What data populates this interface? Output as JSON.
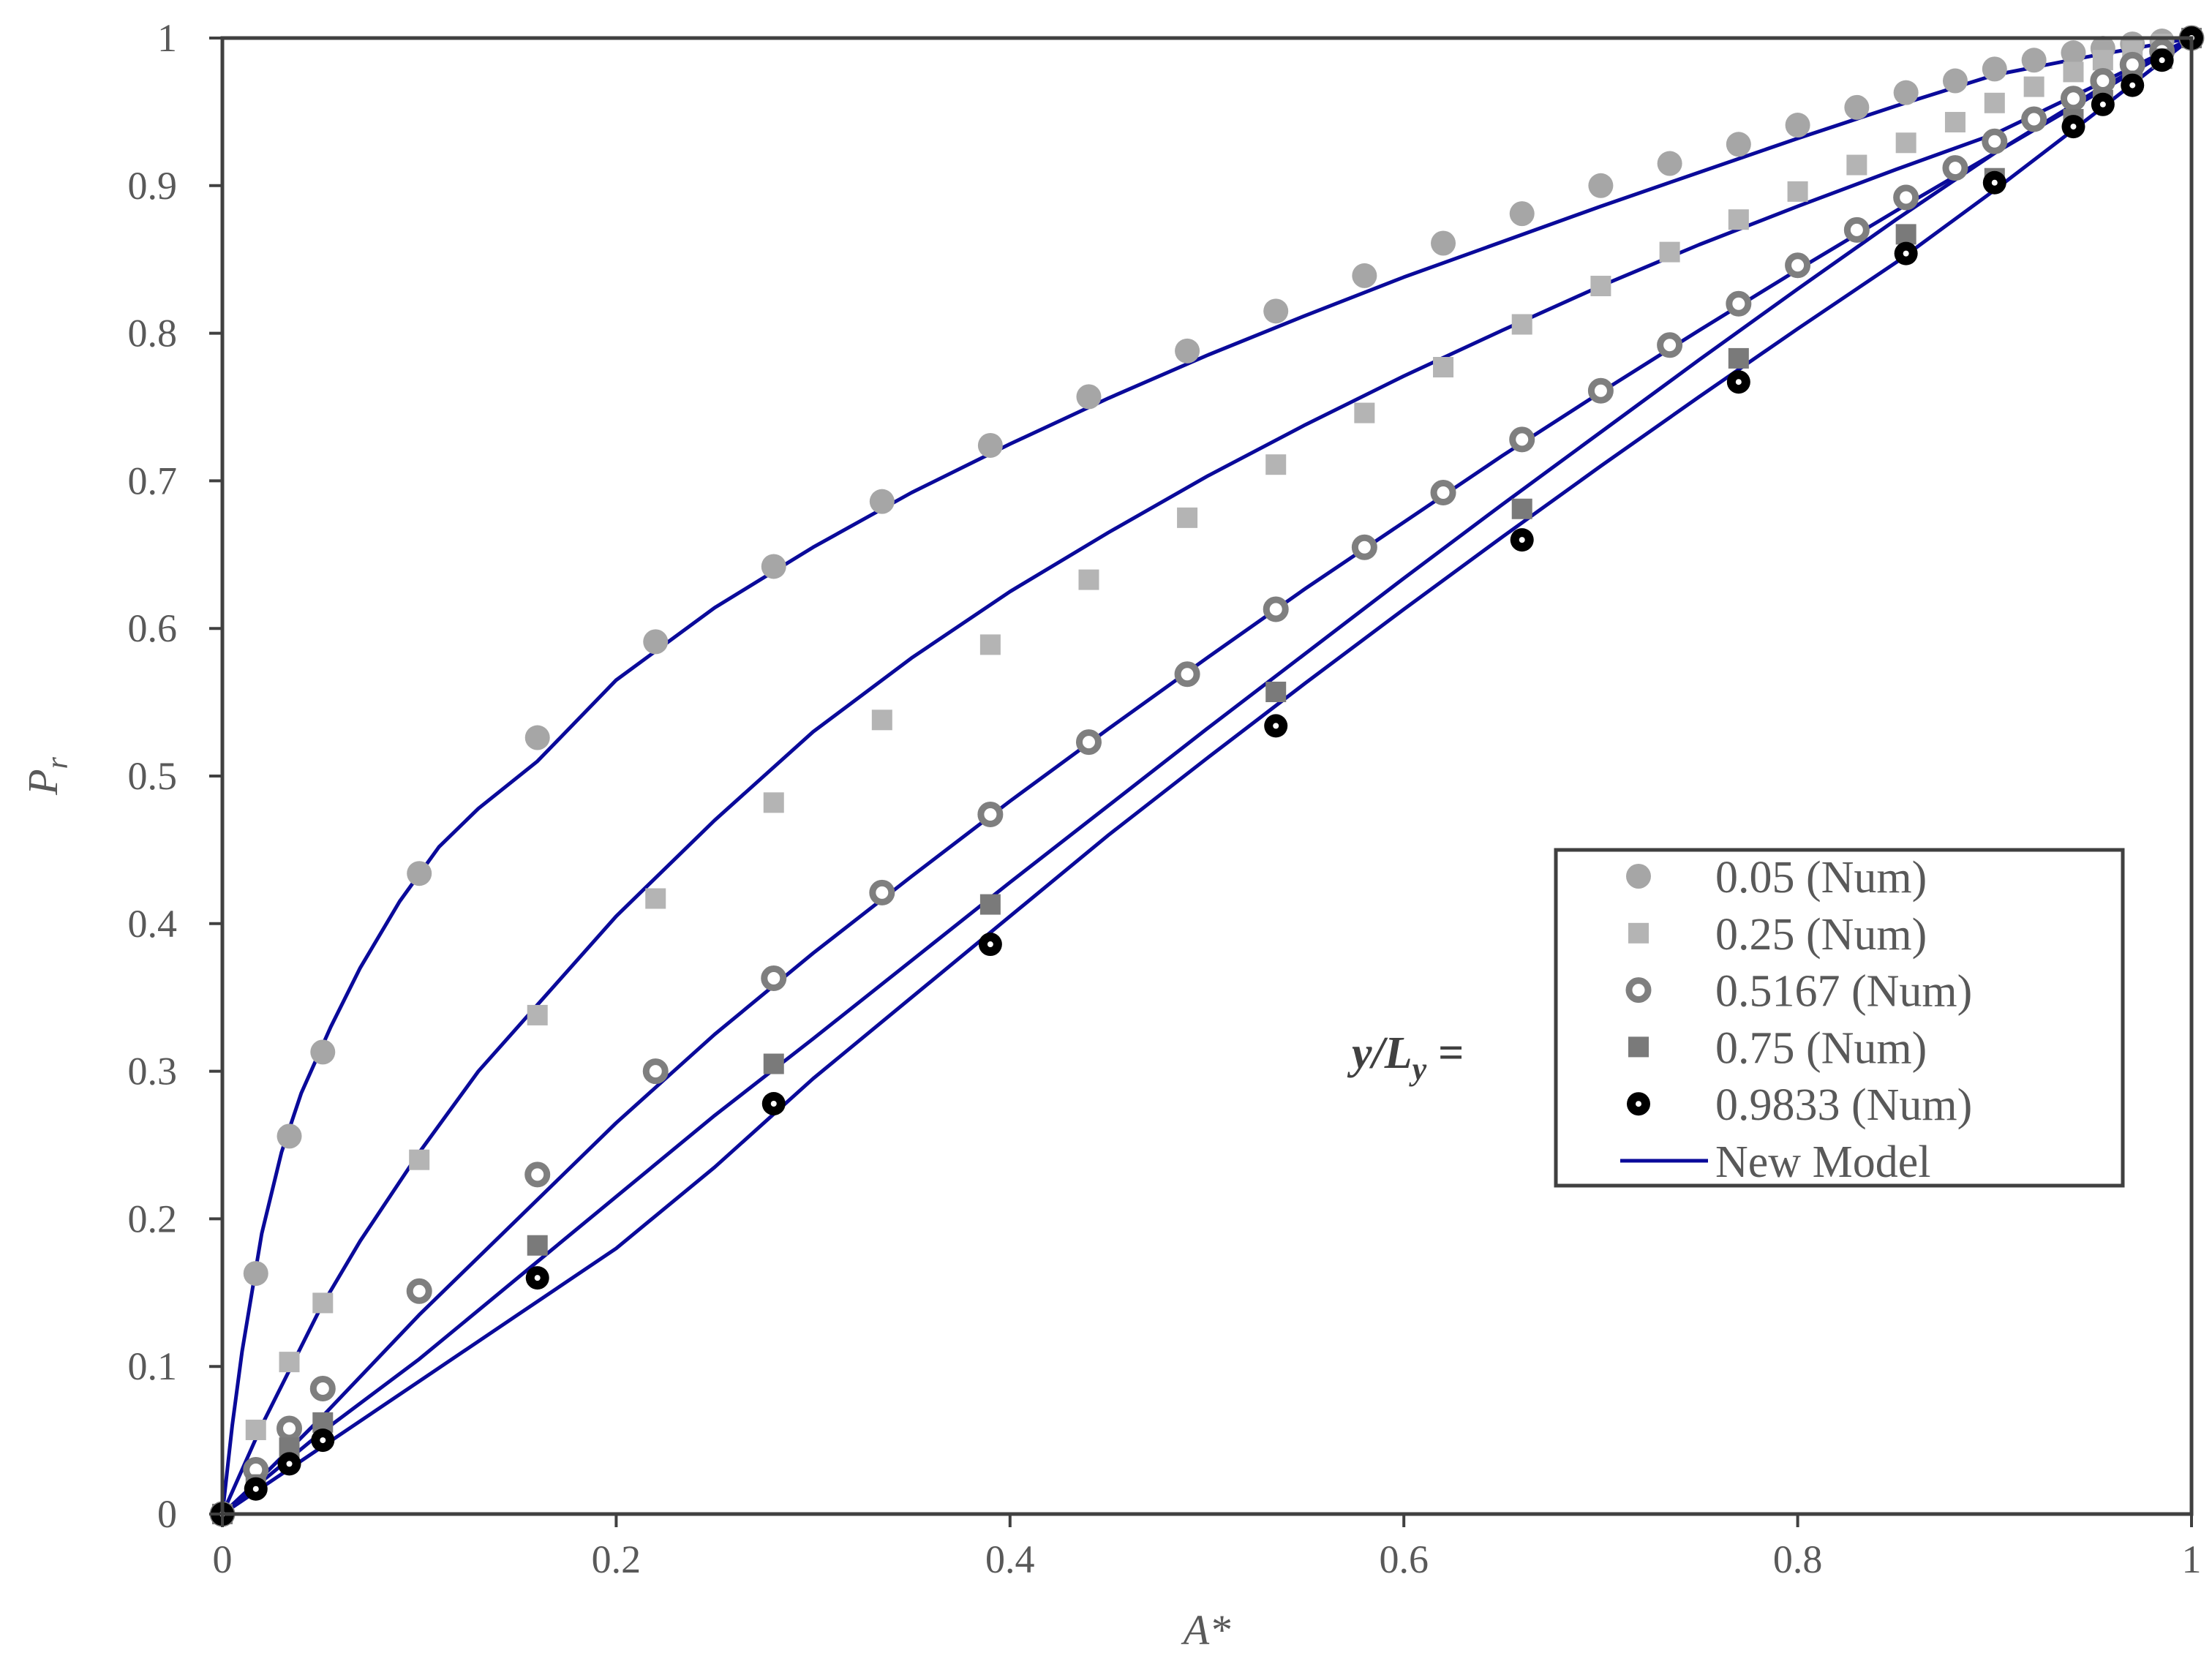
{
  "chart_data": {
    "type": "scatter",
    "xlabel": "A*",
    "ylabel_main": "P",
    "ylabel_sub": "r",
    "xlim": [
      0,
      1
    ],
    "ylim": [
      0,
      1
    ],
    "xticks": [
      "0",
      "0.2",
      "0.4",
      "0.6",
      "0.8",
      "1"
    ],
    "yticks": [
      "0",
      "0.1",
      "0.2",
      "0.3",
      "0.4",
      "0.5",
      "0.6",
      "0.7",
      "0.8",
      "0.9",
      "1"
    ],
    "grid": false,
    "legend": {
      "label_main": "y/L",
      "label_sub": "y",
      "label_eq": " =",
      "placement": "right"
    },
    "series": [
      {
        "name": "0.05 (Num)",
        "marker": "circle",
        "color": "#a6a6a6",
        "points": [
          [
            0,
            0
          ],
          [
            0.017,
            0.163
          ],
          [
            0.034,
            0.256
          ],
          [
            0.051,
            0.313
          ],
          [
            0.1,
            0.434
          ],
          [
            0.16,
            0.526
          ],
          [
            0.22,
            0.591
          ],
          [
            0.28,
            0.642
          ],
          [
            0.335,
            0.686
          ],
          [
            0.39,
            0.724
          ],
          [
            0.44,
            0.757
          ],
          [
            0.49,
            0.788
          ],
          [
            0.535,
            0.815
          ],
          [
            0.58,
            0.839
          ],
          [
            0.62,
            0.861
          ],
          [
            0.66,
            0.881
          ],
          [
            0.7,
            0.9
          ],
          [
            0.735,
            0.915
          ],
          [
            0.77,
            0.928
          ],
          [
            0.8,
            0.941
          ],
          [
            0.83,
            0.953
          ],
          [
            0.855,
            0.963
          ],
          [
            0.88,
            0.971
          ],
          [
            0.9,
            0.979
          ],
          [
            0.92,
            0.985
          ],
          [
            0.94,
            0.99
          ],
          [
            0.955,
            0.993
          ],
          [
            0.97,
            0.996
          ],
          [
            0.985,
            0.998
          ],
          [
            1.0,
            1.0
          ]
        ]
      },
      {
        "name": "0.25 (Num)",
        "marker": "square",
        "color": "#b4b4b4",
        "points": [
          [
            0,
            0
          ],
          [
            0.017,
            0.057
          ],
          [
            0.034,
            0.103
          ],
          [
            0.051,
            0.143
          ],
          [
            0.1,
            0.24
          ],
          [
            0.16,
            0.338
          ],
          [
            0.22,
            0.417
          ],
          [
            0.28,
            0.482
          ],
          [
            0.335,
            0.538
          ],
          [
            0.39,
            0.589
          ],
          [
            0.44,
            0.633
          ],
          [
            0.49,
            0.675
          ],
          [
            0.535,
            0.711
          ],
          [
            0.58,
            0.746
          ],
          [
            0.62,
            0.777
          ],
          [
            0.66,
            0.806
          ],
          [
            0.7,
            0.832
          ],
          [
            0.735,
            0.855
          ],
          [
            0.77,
            0.877
          ],
          [
            0.8,
            0.896
          ],
          [
            0.83,
            0.914
          ],
          [
            0.855,
            0.929
          ],
          [
            0.88,
            0.943
          ],
          [
            0.9,
            0.956
          ],
          [
            0.92,
            0.967
          ],
          [
            0.94,
            0.977
          ],
          [
            0.955,
            0.985
          ],
          [
            0.97,
            0.991
          ],
          [
            0.985,
            0.996
          ],
          [
            1.0,
            1.0
          ]
        ]
      },
      {
        "name": "0.5167 (Num)",
        "marker": "ring",
        "color": "#7f7f7f",
        "points": [
          [
            0,
            0
          ],
          [
            0.017,
            0.03
          ],
          [
            0.034,
            0.058
          ],
          [
            0.051,
            0.085
          ],
          [
            0.1,
            0.151
          ],
          [
            0.16,
            0.23
          ],
          [
            0.22,
            0.3
          ],
          [
            0.28,
            0.363
          ],
          [
            0.335,
            0.421
          ],
          [
            0.39,
            0.474
          ],
          [
            0.44,
            0.523
          ],
          [
            0.49,
            0.569
          ],
          [
            0.535,
            0.613
          ],
          [
            0.58,
            0.655
          ],
          [
            0.62,
            0.692
          ],
          [
            0.66,
            0.728
          ],
          [
            0.7,
            0.761
          ],
          [
            0.735,
            0.792
          ],
          [
            0.77,
            0.82
          ],
          [
            0.8,
            0.846
          ],
          [
            0.83,
            0.87
          ],
          [
            0.855,
            0.892
          ],
          [
            0.88,
            0.912
          ],
          [
            0.9,
            0.93
          ],
          [
            0.92,
            0.945
          ],
          [
            0.94,
            0.959
          ],
          [
            0.955,
            0.971
          ],
          [
            0.97,
            0.982
          ],
          [
            0.985,
            0.991
          ],
          [
            1.0,
            1.0
          ]
        ]
      },
      {
        "name": "0.75 (Num)",
        "marker": "square",
        "color": "#7a7a7a",
        "points": [
          [
            0,
            0
          ],
          [
            0.017,
            0.02
          ],
          [
            0.034,
            0.045
          ],
          [
            0.051,
            0.062
          ],
          [
            0.16,
            0.182
          ],
          [
            0.28,
            0.305
          ],
          [
            0.39,
            0.413
          ],
          [
            0.535,
            0.557
          ],
          [
            0.66,
            0.681
          ],
          [
            0.77,
            0.783
          ],
          [
            0.855,
            0.867
          ],
          [
            0.9,
            0.905
          ],
          [
            0.94,
            0.945
          ],
          [
            0.955,
            0.958
          ],
          [
            0.97,
            0.971
          ],
          [
            0.985,
            0.986
          ],
          [
            1.0,
            1.0
          ]
        ]
      },
      {
        "name": "0.9833 (Num)",
        "marker": "black-dot",
        "color": "#000000",
        "points": [
          [
            0,
            0
          ],
          [
            0.017,
            0.017
          ],
          [
            0.034,
            0.034
          ],
          [
            0.051,
            0.05
          ],
          [
            0.16,
            0.16
          ],
          [
            0.28,
            0.278
          ],
          [
            0.39,
            0.386
          ],
          [
            0.535,
            0.534
          ],
          [
            0.66,
            0.66
          ],
          [
            0.77,
            0.767
          ],
          [
            0.855,
            0.854
          ],
          [
            0.9,
            0.902
          ],
          [
            0.94,
            0.94
          ],
          [
            0.955,
            0.955
          ],
          [
            0.97,
            0.968
          ],
          [
            0.985,
            0.985
          ],
          [
            1.0,
            1.0
          ]
        ]
      },
      {
        "name": "New Model",
        "marker": "line",
        "color": "#0a0a9a",
        "curves": [
          [
            [
              0,
              0
            ],
            [
              0.005,
              0.06
            ],
            [
              0.01,
              0.11
            ],
            [
              0.02,
              0.19
            ],
            [
              0.03,
              0.245
            ],
            [
              0.04,
              0.285
            ],
            [
              0.055,
              0.33
            ],
            [
              0.07,
              0.37
            ],
            [
              0.09,
              0.415
            ],
            [
              0.11,
              0.452
            ],
            [
              0.13,
              0.478
            ],
            [
              0.16,
              0.51
            ],
            [
              0.2,
              0.565
            ],
            [
              0.25,
              0.614
            ],
            [
              0.3,
              0.655
            ],
            [
              0.35,
              0.692
            ],
            [
              0.4,
              0.725
            ],
            [
              0.45,
              0.756
            ],
            [
              0.5,
              0.785
            ],
            [
              0.55,
              0.812
            ],
            [
              0.6,
              0.838
            ],
            [
              0.65,
              0.862
            ],
            [
              0.7,
              0.886
            ],
            [
              0.75,
              0.909
            ],
            [
              0.8,
              0.932
            ],
            [
              0.85,
              0.954
            ],
            [
              0.9,
              0.975
            ],
            [
              0.95,
              0.988
            ],
            [
              1,
              1
            ]
          ],
          [
            [
              0,
              0
            ],
            [
              0.01,
              0.03
            ],
            [
              0.02,
              0.06
            ],
            [
              0.035,
              0.1
            ],
            [
              0.05,
              0.14
            ],
            [
              0.07,
              0.185
            ],
            [
              0.1,
              0.245
            ],
            [
              0.13,
              0.3
            ],
            [
              0.16,
              0.345
            ],
            [
              0.2,
              0.405
            ],
            [
              0.25,
              0.47
            ],
            [
              0.3,
              0.53
            ],
            [
              0.35,
              0.58
            ],
            [
              0.4,
              0.625
            ],
            [
              0.45,
              0.665
            ],
            [
              0.5,
              0.703
            ],
            [
              0.55,
              0.738
            ],
            [
              0.6,
              0.771
            ],
            [
              0.65,
              0.802
            ],
            [
              0.7,
              0.832
            ],
            [
              0.75,
              0.86
            ],
            [
              0.8,
              0.886
            ],
            [
              0.85,
              0.911
            ],
            [
              0.9,
              0.935
            ],
            [
              0.95,
              0.967
            ],
            [
              1,
              1
            ]
          ],
          [
            [
              0,
              0
            ],
            [
              0.02,
              0.025
            ],
            [
              0.05,
              0.065
            ],
            [
              0.1,
              0.135
            ],
            [
              0.15,
              0.2
            ],
            [
              0.2,
              0.265
            ],
            [
              0.25,
              0.325
            ],
            [
              0.3,
              0.38
            ],
            [
              0.35,
              0.432
            ],
            [
              0.4,
              0.483
            ],
            [
              0.45,
              0.532
            ],
            [
              0.5,
              0.58
            ],
            [
              0.55,
              0.627
            ],
            [
              0.6,
              0.672
            ],
            [
              0.65,
              0.717
            ],
            [
              0.7,
              0.76
            ],
            [
              0.75,
              0.802
            ],
            [
              0.8,
              0.843
            ],
            [
              0.85,
              0.883
            ],
            [
              0.9,
              0.922
            ],
            [
              0.95,
              0.961
            ],
            [
              1,
              1
            ]
          ],
          [
            [
              0,
              0
            ],
            [
              0.05,
              0.055
            ],
            [
              0.1,
              0.105
            ],
            [
              0.15,
              0.16
            ],
            [
              0.2,
              0.215
            ],
            [
              0.25,
              0.27
            ],
            [
              0.3,
              0.322
            ],
            [
              0.35,
              0.375
            ],
            [
              0.4,
              0.428
            ],
            [
              0.45,
              0.48
            ],
            [
              0.5,
              0.532
            ],
            [
              0.55,
              0.583
            ],
            [
              0.6,
              0.634
            ],
            [
              0.65,
              0.684
            ],
            [
              0.7,
              0.733
            ],
            [
              0.75,
              0.782
            ],
            [
              0.8,
              0.83
            ],
            [
              0.85,
              0.877
            ],
            [
              0.9,
              0.922
            ],
            [
              0.95,
              0.963
            ],
            [
              1,
              1
            ]
          ],
          [
            [
              0,
              0
            ],
            [
              0.05,
              0.045
            ],
            [
              0.1,
              0.09
            ],
            [
              0.15,
              0.135
            ],
            [
              0.2,
              0.18
            ],
            [
              0.25,
              0.235
            ],
            [
              0.3,
              0.295
            ],
            [
              0.35,
              0.35
            ],
            [
              0.4,
              0.405
            ],
            [
              0.45,
              0.46
            ],
            [
              0.5,
              0.512
            ],
            [
              0.55,
              0.563
            ],
            [
              0.6,
              0.613
            ],
            [
              0.65,
              0.662
            ],
            [
              0.7,
              0.71
            ],
            [
              0.75,
              0.757
            ],
            [
              0.8,
              0.803
            ],
            [
              0.85,
              0.848
            ],
            [
              0.9,
              0.897
            ],
            [
              0.95,
              0.948
            ],
            [
              1,
              1
            ]
          ]
        ]
      }
    ]
  }
}
